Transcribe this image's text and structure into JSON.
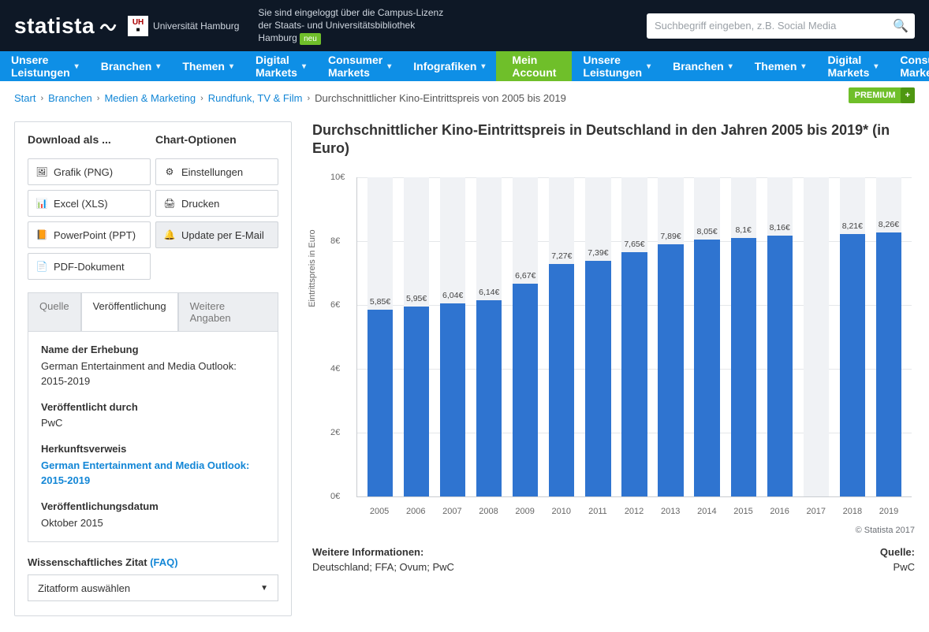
{
  "header": {
    "logo_text": "statista",
    "partner": "Universität Hamburg",
    "login_line1": "Sie sind eingeloggt über die Campus-Lizenz",
    "login_line2": "der Staats- und Universitätsbibliothek",
    "login_line3": "Hamburg",
    "neu_badge": "neu",
    "search_placeholder": "Suchbegriff eingeben, z.B. Social Media"
  },
  "nav": {
    "items": [
      "Unsere Leistungen",
      "Branchen",
      "Themen",
      "Digital Markets",
      "Consumer Markets",
      "Infografiken"
    ],
    "account": "Mein Account"
  },
  "breadcrumb": {
    "segments": [
      "Start",
      "Branchen",
      "Medien & Marketing",
      "Rundfunk, TV & Film"
    ],
    "current": "Durchschnittlicher Kino-Eintrittspreis von 2005 bis 2019"
  },
  "premium": {
    "label": "PREMIUM",
    "plus": "+"
  },
  "left": {
    "download_heading": "Download als ...",
    "chart_heading": "Chart-Optionen",
    "downloads": [
      {
        "icon": "🖼",
        "label": "Grafik (PNG)"
      },
      {
        "icon": "📊",
        "label": "Excel (XLS)"
      },
      {
        "icon": "📙",
        "label": "PowerPoint (PPT)"
      },
      {
        "icon": "📄",
        "label": "PDF-Dokument"
      }
    ],
    "chart_opts": [
      {
        "icon": "⚙",
        "label": "Einstellungen"
      },
      {
        "icon": "🖨",
        "label": "Drucken"
      },
      {
        "icon": "🔔",
        "label": "Update per E-Mail"
      }
    ],
    "tabs": [
      "Quelle",
      "Veröffentlichung",
      "Weitere Angaben"
    ],
    "active_tab": 1,
    "pub": {
      "name_h": "Name der Erhebung",
      "name_v": "German Entertainment and Media Outlook: 2015-2019",
      "by_h": "Veröffentlicht durch",
      "by_v": "PwC",
      "src_h": "Herkunftsverweis",
      "src_link": "German Entertainment and Media Outlook: 2015-2019",
      "date_h": "Veröffentlichungsdatum",
      "date_v": "Oktober 2015"
    },
    "zitat_label": "Wissenschaftliches Zitat ",
    "zitat_faq": "(FAQ)",
    "zitat_placeholder": "Zitatform auswählen"
  },
  "chart": {
    "title": "Durchschnittlicher Kino-Eintrittspreis in Deutschland in den Jahren 2005 bis 2019* (in Euro)",
    "type": "bar",
    "y_axis_label": "Eintrittspreis in Euro",
    "ylim": [
      0,
      10
    ],
    "ytick_step": 2,
    "ytick_labels": [
      "0€",
      "2€",
      "4€",
      "6€",
      "8€",
      "10€"
    ],
    "categories": [
      "2005",
      "2006",
      "2007",
      "2008",
      "2009",
      "2010",
      "2011",
      "2012",
      "2013",
      "2014",
      "2015",
      "2016",
      "2017",
      "2018",
      "2019"
    ],
    "values": [
      5.85,
      5.95,
      6.04,
      6.14,
      6.67,
      7.27,
      7.39,
      7.65,
      7.89,
      8.05,
      8.1,
      8.16,
      null,
      8.21,
      8.26
    ],
    "value_labels": [
      "5,85€",
      "5,95€",
      "6,04€",
      "6,14€",
      "6,67€",
      "7,27€",
      "7,39€",
      "7,65€",
      "7,89€",
      "8,05€",
      "8,1€",
      "8,16€",
      "",
      "8,21€",
      "8,26€"
    ],
    "bar_color": "#2f74d0",
    "shadow_color": "#f0f2f5",
    "grid_color": "#e5e7ea",
    "axis_color": "#c9ccd0",
    "label_fontsize": 11,
    "value_fontsize": 10.5,
    "bar_width": 0.7,
    "background_color": "#ffffff"
  },
  "footer": {
    "copyright": "© Statista 2017",
    "more_h": "Weitere Informationen:",
    "more_v": "Deutschland; FFA; Ovum; PwC",
    "source_h": "Quelle:",
    "source_v": "PwC"
  }
}
